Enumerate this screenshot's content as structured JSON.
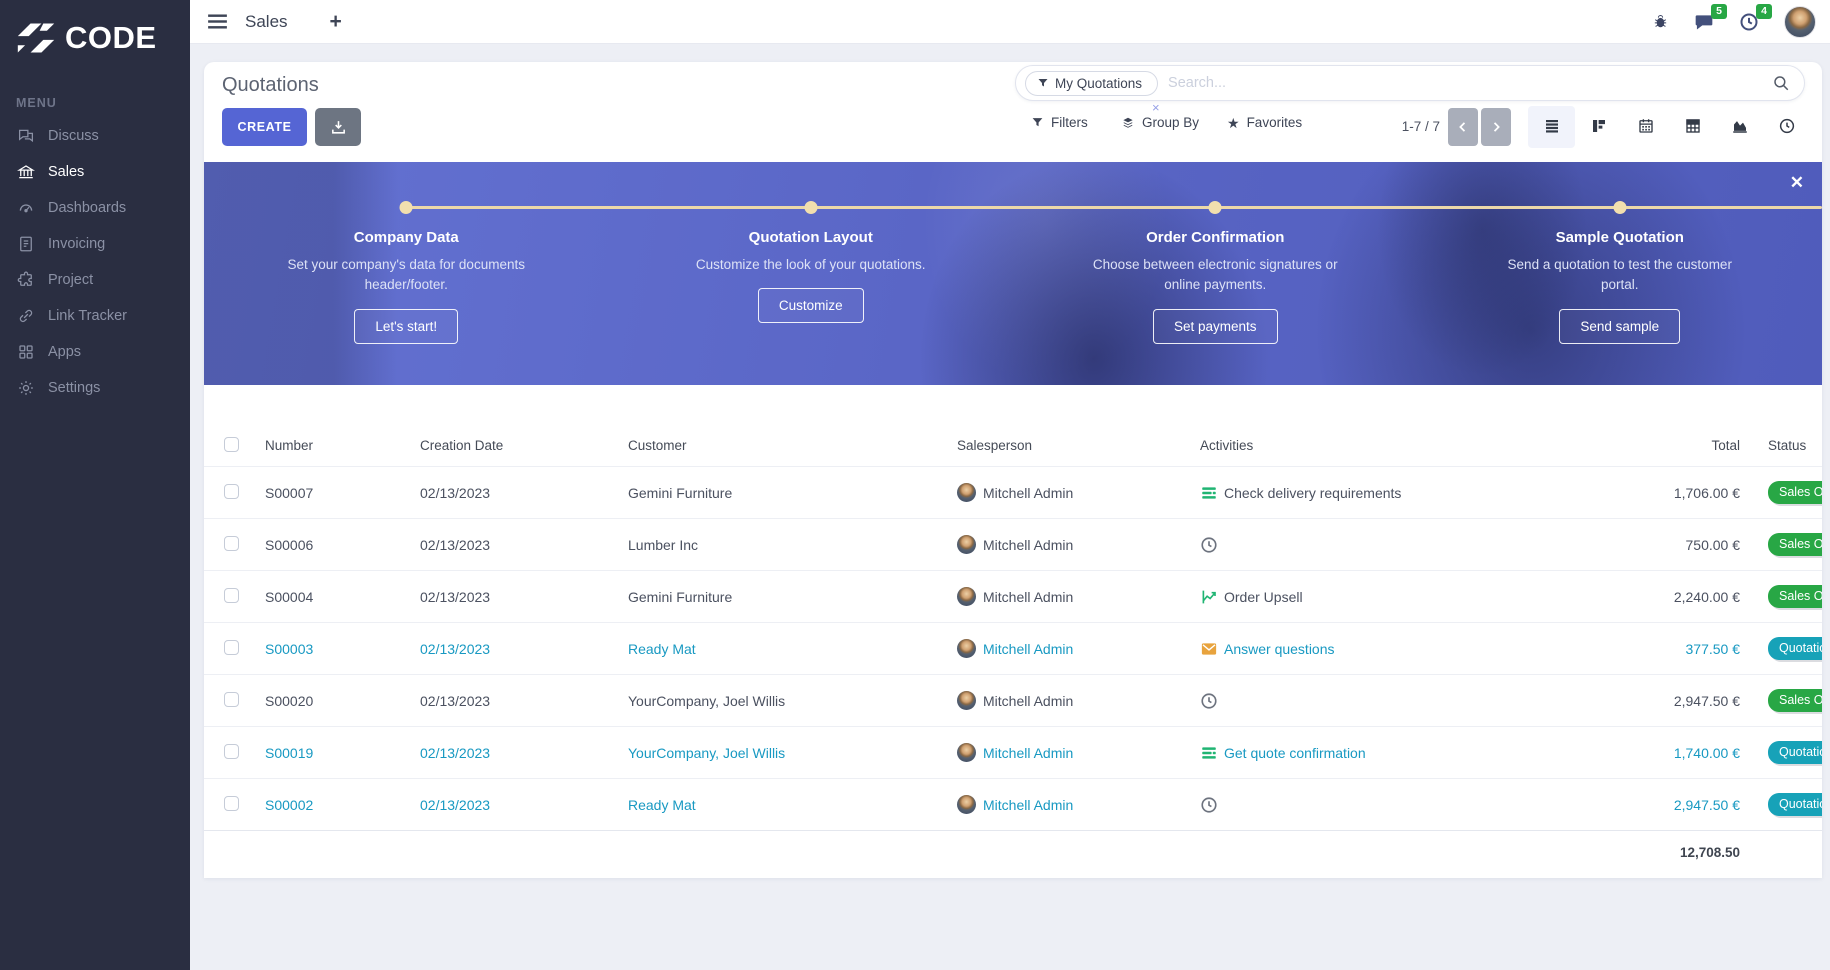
{
  "brand": {
    "name": "CODE"
  },
  "sidebar": {
    "section_label": "MENU",
    "items": [
      {
        "label": "Discuss",
        "icon": "discuss-icon",
        "active": false
      },
      {
        "label": "Sales",
        "icon": "sales-icon",
        "active": true
      },
      {
        "label": "Dashboards",
        "icon": "dashboards-icon",
        "active": false
      },
      {
        "label": "Invoicing",
        "icon": "invoicing-icon",
        "active": false
      },
      {
        "label": "Project",
        "icon": "project-icon",
        "active": false
      },
      {
        "label": "Link Tracker",
        "icon": "link-tracker-icon",
        "active": false
      },
      {
        "label": "Apps",
        "icon": "apps-icon",
        "active": false
      },
      {
        "label": "Settings",
        "icon": "settings-icon",
        "active": false
      }
    ]
  },
  "topbar": {
    "app_title": "Sales",
    "new_tab": "+",
    "message_count": "5",
    "activity_count": "4"
  },
  "control_panel": {
    "title": "Quotations",
    "create_label": "CREATE",
    "search_facet": "My Quotations",
    "facet_remove": "×",
    "search_placeholder": "Search...",
    "filters_label": "Filters",
    "group_by_label": "Group By",
    "favorites_label": "Favorites",
    "favorites_star": "★",
    "pager": "1-7 / 7"
  },
  "banner": {
    "close": "✕",
    "steps": [
      {
        "title": "Company Data",
        "description": "Set your company's data for documents header/footer.",
        "button": "Let's start!"
      },
      {
        "title": "Quotation Layout",
        "description": "Customize the look of your quotations.",
        "button": "Customize"
      },
      {
        "title": "Order Confirmation",
        "description": "Choose between electronic signatures or online payments.",
        "button": "Set payments"
      },
      {
        "title": "Sample Quotation",
        "description": "Send a quotation to test the customer portal.",
        "button": "Send sample"
      }
    ]
  },
  "table": {
    "headers": [
      "Number",
      "Creation Date",
      "Customer",
      "Salesperson",
      "Activities",
      "Total",
      "Status"
    ],
    "rows": [
      {
        "number": "S00007",
        "date": "02/13/2023",
        "customer": "Gemini Furniture",
        "salesperson": "Mitchell Admin",
        "activity_icon": "tasks-icon",
        "activity": "Check delivery requirements",
        "total": "1,706.00 €",
        "status": "Sales Order",
        "status_tone": "success",
        "row_tone": "default"
      },
      {
        "number": "S00006",
        "date": "02/13/2023",
        "customer": "Lumber Inc",
        "salesperson": "Mitchell Admin",
        "activity_icon": "clock-icon",
        "activity": "",
        "total": "750.00 €",
        "status": "Sales Order",
        "status_tone": "success",
        "row_tone": "default"
      },
      {
        "number": "S00004",
        "date": "02/13/2023",
        "customer": "Gemini Furniture",
        "salesperson": "Mitchell Admin",
        "activity_icon": "chart-icon",
        "activity": "Order Upsell",
        "total": "2,240.00 €",
        "status": "Sales Order",
        "status_tone": "success",
        "row_tone": "default"
      },
      {
        "number": "S00003",
        "date": "02/13/2023",
        "customer": "Ready Mat",
        "salesperson": "Mitchell Admin",
        "activity_icon": "envelope-icon",
        "activity": "Answer questions",
        "total": "377.50 €",
        "status": "Quotation",
        "status_tone": "info",
        "row_tone": "info"
      },
      {
        "number": "S00020",
        "date": "02/13/2023",
        "customer": "YourCompany, Joel Willis",
        "salesperson": "Mitchell Admin",
        "activity_icon": "clock-icon",
        "activity": "",
        "total": "2,947.50 €",
        "status": "Sales Order",
        "status_tone": "success",
        "row_tone": "default"
      },
      {
        "number": "S00019",
        "date": "02/13/2023",
        "customer": "YourCompany, Joel Willis",
        "salesperson": "Mitchell Admin",
        "activity_icon": "tasks-icon",
        "activity": "Get quote confirmation",
        "total": "1,740.00 €",
        "status": "Quotation",
        "status_tone": "info",
        "row_tone": "info"
      },
      {
        "number": "S00002",
        "date": "02/13/2023",
        "customer": "Ready Mat",
        "salesperson": "Mitchell Admin",
        "activity_icon": "clock-icon",
        "activity": "",
        "total": "2,947.50 €",
        "status": "Quotation",
        "status_tone": "info",
        "row_tone": "info"
      }
    ],
    "footer_total": "12,708.50"
  },
  "colors": {
    "accent": "#5565d4",
    "success": "#28a745",
    "info": "#17a2b8",
    "info_text": "#1899c2",
    "sidebar_bg": "#2a2e41",
    "page_bg": "#edeff5",
    "banner_tint": "#6472d2",
    "timeline": "#ecd8a9"
  }
}
